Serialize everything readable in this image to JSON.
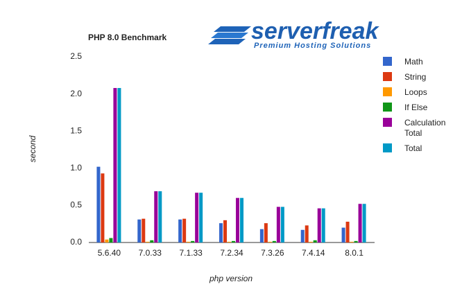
{
  "chart_data": {
    "type": "bar",
    "title": "PHP 8.0 Benchmark",
    "logo": {
      "name": "serverfreak",
      "tagline": "Premium Hosting Solutions"
    },
    "x_label": "php version",
    "y_label": "second",
    "categories": [
      "5.6.40",
      "7.0.33",
      "7.1.33",
      "7.2.34",
      "7.3.26",
      "7.4.14",
      "8.0.1"
    ],
    "series": [
      {
        "name": "Math",
        "color": "#3366cc",
        "values": [
          1.02,
          0.31,
          0.31,
          0.26,
          0.18,
          0.17,
          0.2
        ]
      },
      {
        "name": "String",
        "color": "#dc3912",
        "values": [
          0.93,
          0.32,
          0.32,
          0.3,
          0.26,
          0.23,
          0.28
        ]
      },
      {
        "name": "Loops",
        "color": "#ff9900",
        "values": [
          0.04,
          0.01,
          0.01,
          0.01,
          0.01,
          0.01,
          0.01
        ]
      },
      {
        "name": "If Else",
        "color": "#109618",
        "values": [
          0.06,
          0.03,
          0.02,
          0.02,
          0.02,
          0.03,
          0.02
        ]
      },
      {
        "name": "Calculation Total",
        "color": "#990099",
        "values": [
          2.08,
          0.69,
          0.67,
          0.6,
          0.48,
          0.46,
          0.52
        ]
      },
      {
        "name": "Total",
        "color": "#0099c6",
        "values": [
          2.08,
          0.69,
          0.67,
          0.6,
          0.48,
          0.46,
          0.52
        ]
      }
    ],
    "ylim": [
      0,
      2.5
    ],
    "yticks": [
      {
        "value": 0,
        "label": "0.0"
      },
      0.5,
      {
        "value": 1,
        "label": "1.0"
      },
      1.5,
      {
        "value": 2,
        "label": "2.0"
      },
      2.5
    ],
    "grid": false,
    "legend": "right"
  }
}
